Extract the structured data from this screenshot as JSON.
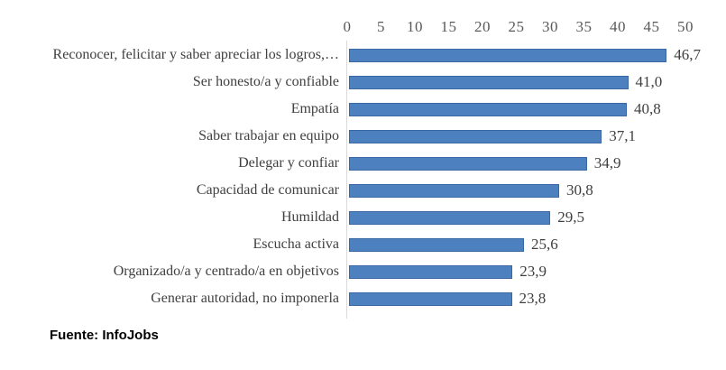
{
  "chart_data": {
    "type": "bar",
    "orientation": "horizontal",
    "title": "",
    "xlabel": "",
    "ylabel": "",
    "categories": [
      "Reconocer, felicitar y saber apreciar los logros,…",
      "Ser honesto/a y confiable",
      "Empatía",
      "Saber trabajar en equipo",
      "Delegar y confiar",
      "Capacidad de comunicar",
      "Humildad",
      "Escucha activa",
      "Organizado/a y centrado/a en objetivos",
      "Generar autoridad, no imponerla"
    ],
    "values": [
      46.7,
      41.0,
      40.8,
      37.1,
      34.9,
      30.8,
      29.5,
      25.6,
      23.9,
      23.8
    ],
    "value_labels": [
      "46,7",
      "41,0",
      "40,8",
      "37,1",
      "34,9",
      "30,8",
      "29,5",
      "25,6",
      "23,9",
      "23,8"
    ],
    "xlim": [
      0,
      50
    ],
    "xticks": [
      0,
      5,
      10,
      15,
      20,
      25,
      30,
      35,
      40,
      45,
      50
    ],
    "grid": false,
    "legend": "none",
    "axis_position": "top",
    "bar_color": "#4d80be",
    "bar_border_color": "#3a68a2",
    "axis_line_color": "#d9d9d9",
    "tick_label_color": "#595959",
    "category_label_color": "#404040",
    "value_label_color": "#3f3f3f"
  },
  "source": {
    "text": "Fuente: InfoJobs"
  }
}
